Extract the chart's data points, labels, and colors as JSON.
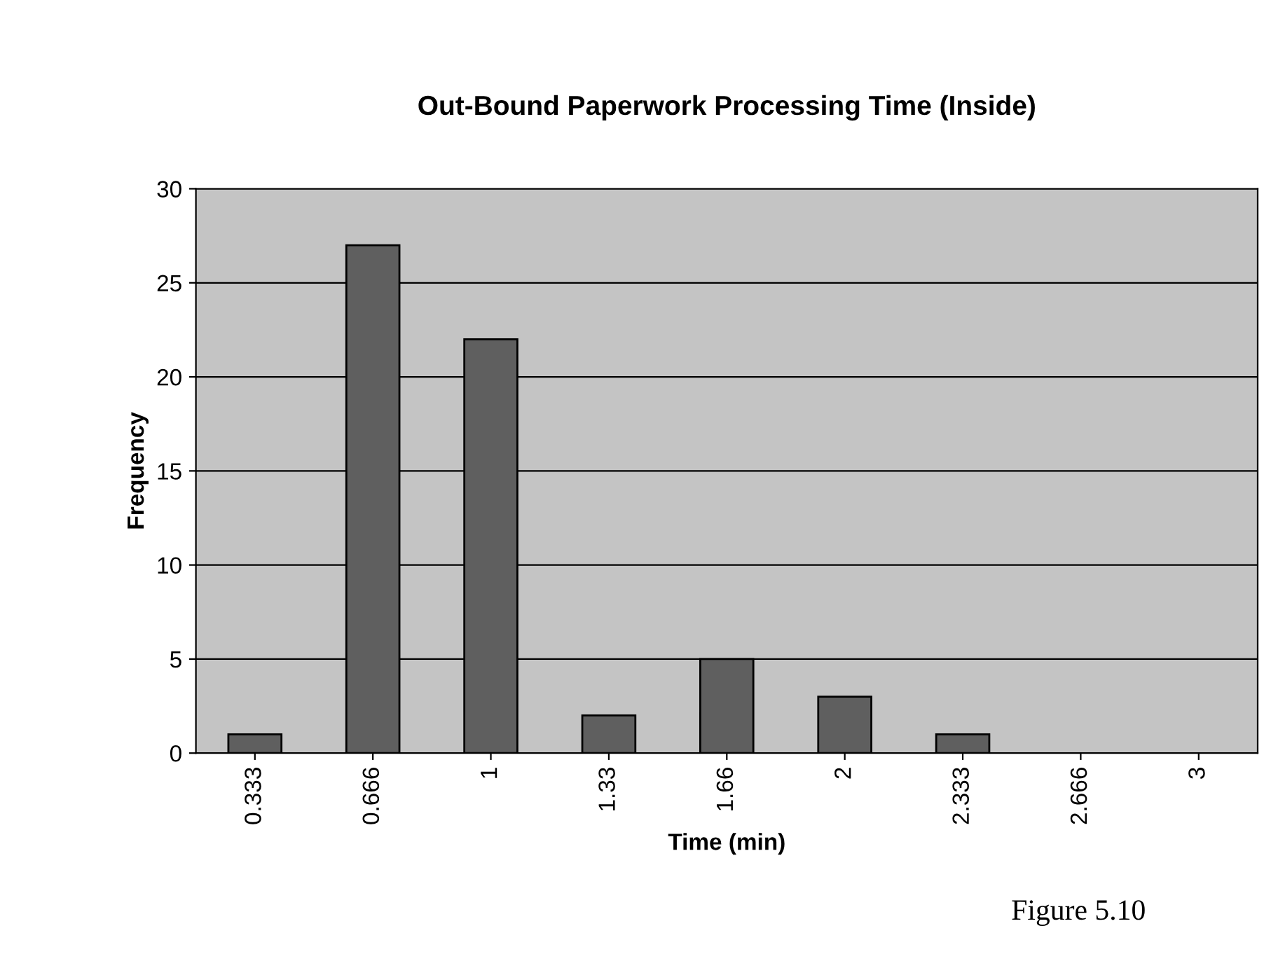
{
  "chart_data": {
    "type": "bar",
    "title": "Out-Bound Paperwork Processing Time (Inside)",
    "xlabel": "Time (min)",
    "ylabel": "Frequency",
    "categories": [
      "0.333",
      "0.666",
      "1",
      "1.33",
      "1.66",
      "2",
      "2.333",
      "2.666",
      "3"
    ],
    "values": [
      1,
      27,
      22,
      2,
      5,
      3,
      1,
      0,
      0
    ],
    "color": "#5f5f5f",
    "ylim": [
      0,
      30
    ],
    "yticks": [
      0,
      5,
      10,
      15,
      20,
      25,
      30
    ],
    "grid": "y",
    "annotations": [
      "Figure 5.10"
    ]
  }
}
